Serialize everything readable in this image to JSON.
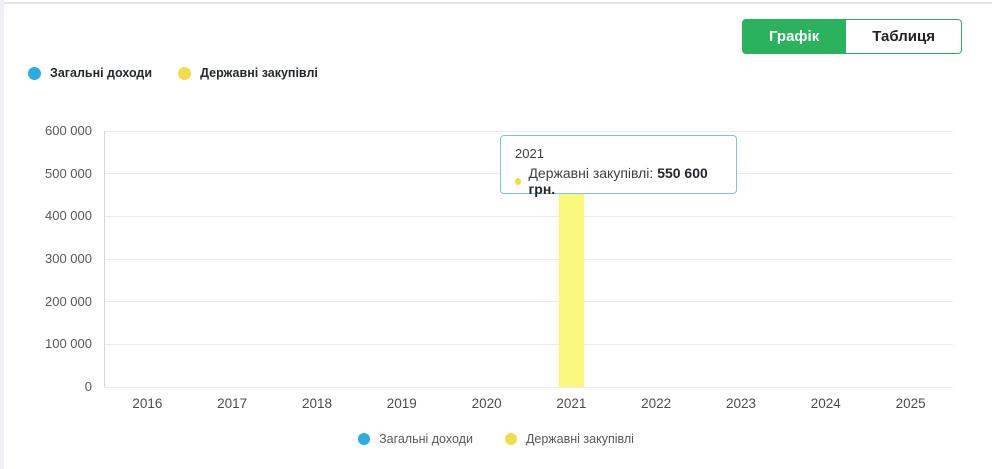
{
  "header": {
    "tabs": [
      {
        "label": "Графік",
        "active": true
      },
      {
        "label": "Таблиця",
        "active": false
      }
    ]
  },
  "colors": {
    "green": "#2BB25D",
    "blue": "#29ADE3",
    "yellow": "#F2DD49",
    "bar_fill": "#FAF77D",
    "tooltip_border": "#7CC4E4"
  },
  "tooltip": {
    "title": "2021",
    "series_label": "Державні закупівлі:",
    "value": "550 600 грн."
  },
  "chart_data": {
    "type": "bar",
    "title": "",
    "xlabel": "",
    "ylabel": "",
    "categories": [
      "2016",
      "2017",
      "2018",
      "2019",
      "2020",
      "2021",
      "2022",
      "2023",
      "2024",
      "2025"
    ],
    "series": [
      {
        "name": "Загальні доходи",
        "color": "#29ADE3",
        "values": [
          null,
          null,
          null,
          null,
          null,
          null,
          null,
          null,
          null,
          null
        ]
      },
      {
        "name": "Державні закупівлі",
        "color": "#F2DD49",
        "bar_fill": "#FAF77D",
        "values": [
          null,
          null,
          null,
          null,
          null,
          550600,
          null,
          null,
          null,
          null
        ]
      }
    ],
    "ylim": [
      0,
      600000
    ],
    "y_ticks": [
      "0",
      "100 000",
      "200 000",
      "300 000",
      "400 000",
      "500 000",
      "600 000"
    ],
    "grid": true,
    "legend_position": "top-left and bottom-center",
    "tooltip_point": {
      "category": "2021",
      "series": "Державні закупівлі",
      "value": 550600,
      "value_label": "550 600 грн."
    }
  }
}
